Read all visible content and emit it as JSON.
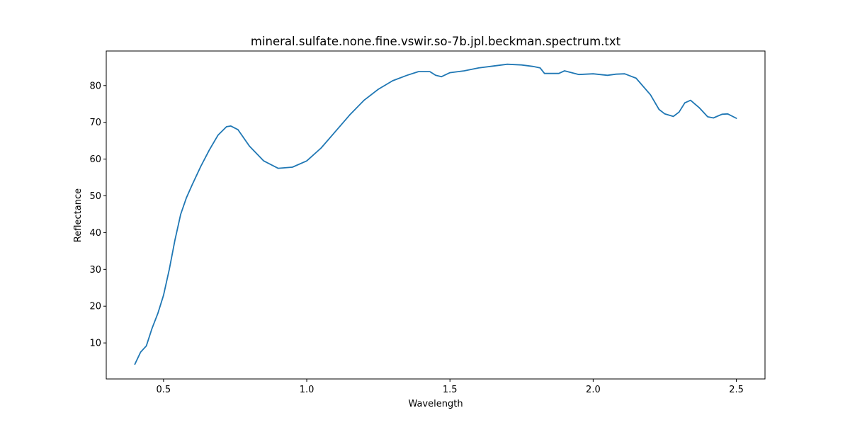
{
  "chart_data": {
    "type": "line",
    "title": "mineral.sulfate.none.fine.vswir.so-7b.jpl.beckman.spectrum.txt",
    "xlabel": "Wavelength",
    "ylabel": "Reflectance",
    "xlim": [
      0.3,
      2.6
    ],
    "ylim": [
      0.2,
      89.4
    ],
    "xticks": [
      0.5,
      1.0,
      1.5,
      2.0,
      2.5
    ],
    "xtick_labels": [
      "0.5",
      "1.0",
      "1.5",
      "2.0",
      "2.5"
    ],
    "yticks": [
      10,
      20,
      30,
      40,
      50,
      60,
      70,
      80
    ],
    "ytick_labels": [
      "10",
      "20",
      "30",
      "40",
      "50",
      "60",
      "70",
      "80"
    ],
    "grid": false,
    "legend": "none",
    "line_color": "#1f77b4",
    "series": [
      {
        "x": [
          0.4,
          0.42,
          0.44,
          0.46,
          0.48,
          0.5,
          0.52,
          0.54,
          0.56,
          0.58,
          0.6,
          0.63,
          0.66,
          0.69,
          0.72,
          0.735,
          0.76,
          0.8,
          0.85,
          0.9,
          0.95,
          1.0,
          1.05,
          1.1,
          1.15,
          1.2,
          1.25,
          1.3,
          1.35,
          1.39,
          1.43,
          1.45,
          1.47,
          1.5,
          1.55,
          1.6,
          1.65,
          1.7,
          1.75,
          1.79,
          1.815,
          1.83,
          1.85,
          1.88,
          1.9,
          1.95,
          2.0,
          2.05,
          2.08,
          2.11,
          2.15,
          2.2,
          2.23,
          2.25,
          2.28,
          2.3,
          2.32,
          2.34,
          2.37,
          2.4,
          2.42,
          2.45,
          2.47,
          2.5
        ],
        "y": [
          4.2,
          7.5,
          9.2,
          14.0,
          18.0,
          23.0,
          30.0,
          38.0,
          45.0,
          49.5,
          53.0,
          58.0,
          62.5,
          66.5,
          68.8,
          69.0,
          68.0,
          63.5,
          59.5,
          57.5,
          57.8,
          59.5,
          63.0,
          67.5,
          72.0,
          76.0,
          79.0,
          81.3,
          82.8,
          83.8,
          83.8,
          82.8,
          82.4,
          83.5,
          84.0,
          84.8,
          85.3,
          85.8,
          85.6,
          85.2,
          84.8,
          83.3,
          83.3,
          83.3,
          84.0,
          83.0,
          83.2,
          82.8,
          83.1,
          83.2,
          82.0,
          77.5,
          73.5,
          72.3,
          71.6,
          72.8,
          75.3,
          76.0,
          74.0,
          71.5,
          71.2,
          72.2,
          72.3,
          71.1
        ]
      }
    ]
  }
}
